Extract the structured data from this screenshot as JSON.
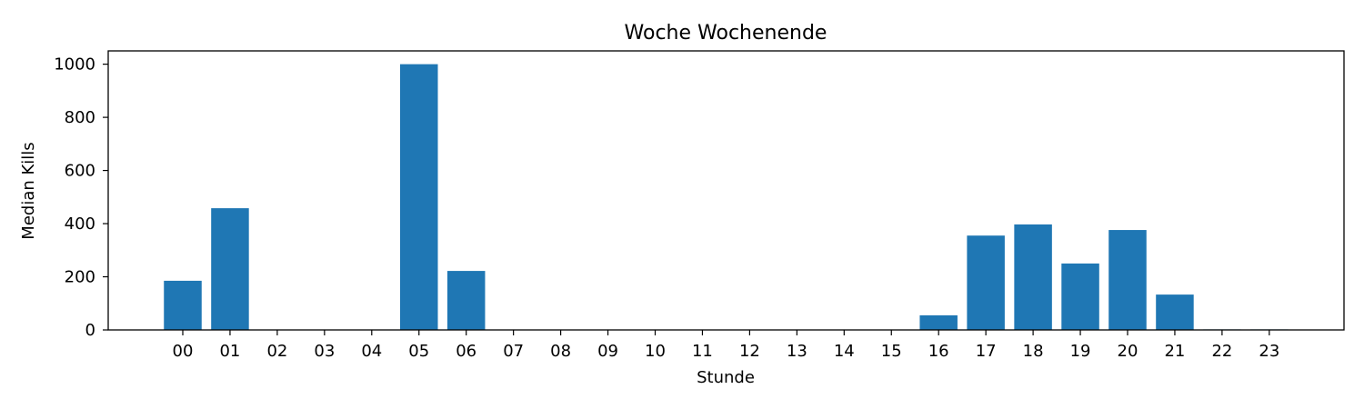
{
  "chart_data": {
    "type": "bar",
    "title": "Woche Wochenende",
    "xlabel": "Stunde",
    "ylabel": "Median Kills",
    "categories": [
      "00",
      "01",
      "02",
      "03",
      "04",
      "05",
      "06",
      "07",
      "08",
      "09",
      "10",
      "11",
      "12",
      "13",
      "14",
      "15",
      "16",
      "17",
      "18",
      "19",
      "20",
      "21",
      "22",
      "23"
    ],
    "values": [
      185,
      458,
      0,
      0,
      0,
      1000,
      222,
      0,
      0,
      0,
      0,
      0,
      0,
      0,
      0,
      0,
      55,
      355,
      397,
      250,
      376,
      133,
      2,
      2
    ],
    "ylim": [
      0,
      1050
    ],
    "yticks": [
      0,
      200,
      400,
      600,
      800,
      1000
    ],
    "bar_color": "#1f77b4",
    "grid": false,
    "legend": "none"
  }
}
